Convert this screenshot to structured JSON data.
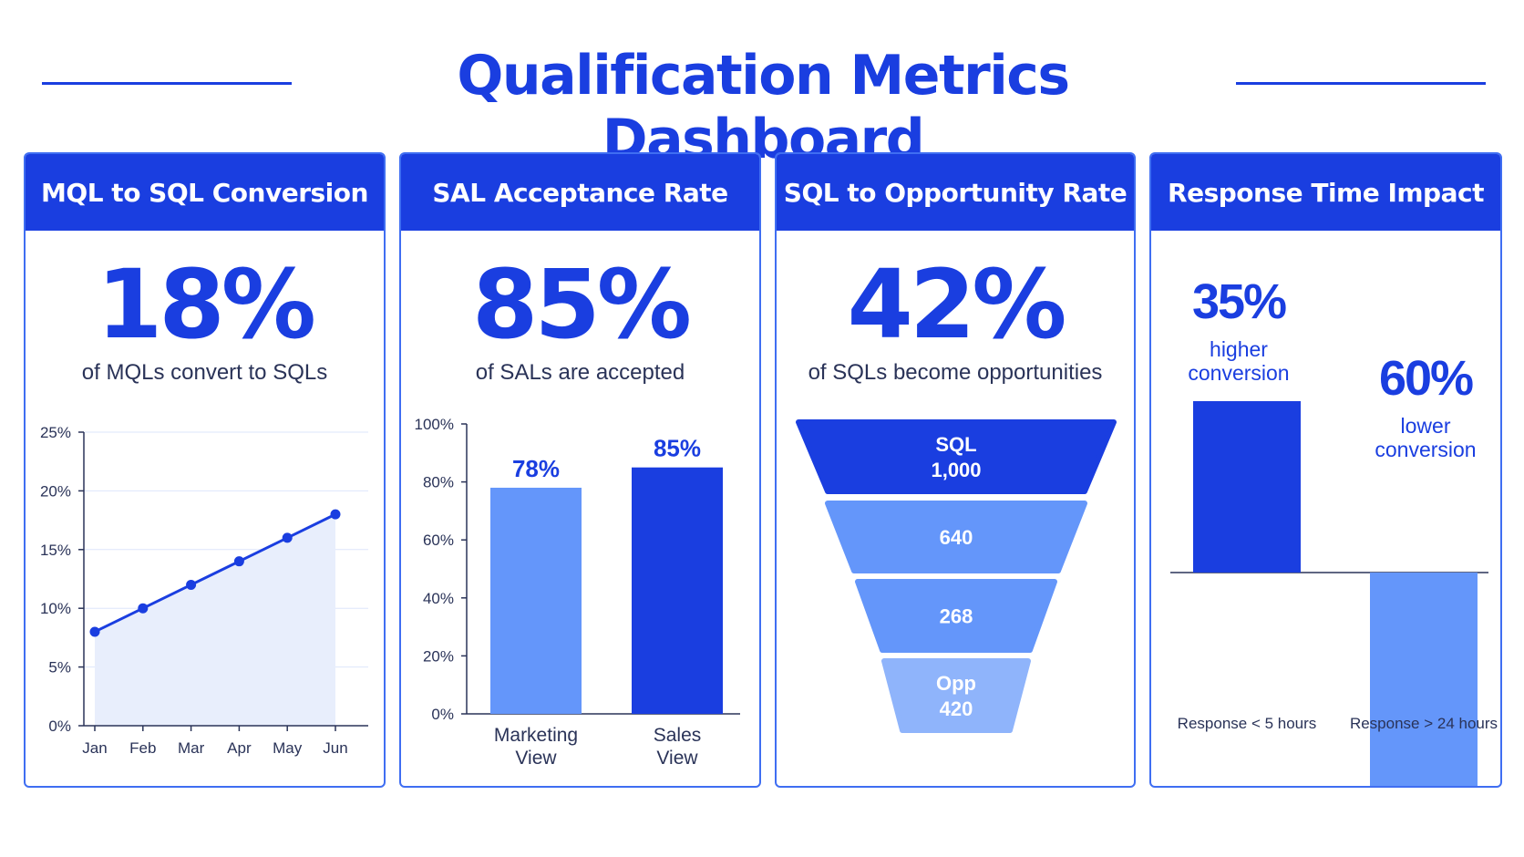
{
  "title": "Qualification Metrics Dashboard",
  "colors": {
    "primary": "#1a3ee0",
    "light": "#6496fa",
    "fill": "#e8eefc",
    "grid": "#dde6fb"
  },
  "cards": [
    {
      "header": "MQL to SQL Conversion",
      "big": "18%",
      "sub": "of MQLs convert to SQLs"
    },
    {
      "header": "SAL Acceptance Rate",
      "big": "85%",
      "sub": "of SALs are accepted"
    },
    {
      "header": "SQL to Opportunity Rate",
      "big": "42%",
      "sub": "of SQLs become opportunities"
    },
    {
      "header": "Response Time Impact"
    }
  ],
  "chart_data": [
    {
      "type": "line",
      "categories": [
        "Jan",
        "Feb",
        "Mar",
        "Apr",
        "May",
        "Jun"
      ],
      "values": [
        8,
        10,
        12,
        14,
        16,
        18
      ],
      "yticks": [
        "0%",
        "5%",
        "10%",
        "15%",
        "20%",
        "25%"
      ],
      "ylim": [
        0,
        25
      ],
      "grid": true
    },
    {
      "type": "bar",
      "categories": [
        "Marketing View",
        "Sales View"
      ],
      "category_lines": [
        [
          "Marketing",
          "View"
        ],
        [
          "Sales",
          "View"
        ]
      ],
      "values": [
        78,
        85
      ],
      "value_labels": [
        "78%",
        "85%"
      ],
      "yticks": [
        "0%",
        "20%",
        "40%",
        "60%",
        "80%",
        "100%"
      ],
      "ylim": [
        0,
        100
      ]
    },
    {
      "type": "funnel",
      "stages": [
        {
          "lines": [
            "SQL",
            "1,000"
          ],
          "value": 1000
        },
        {
          "lines": [
            "640"
          ],
          "value": 640
        },
        {
          "lines": [
            "268"
          ],
          "value": 268
        },
        {
          "lines": [
            "Opp",
            "420"
          ],
          "value": 420
        }
      ]
    },
    {
      "type": "bar",
      "categories": [
        "Response < 5 hours",
        "Response > 24 hours"
      ],
      "values": [
        35,
        -60
      ],
      "value_labels": [
        "35%",
        "60%"
      ],
      "annotations": [
        [
          "higher",
          "conversion"
        ],
        [
          "lower",
          "conversion"
        ]
      ]
    }
  ]
}
